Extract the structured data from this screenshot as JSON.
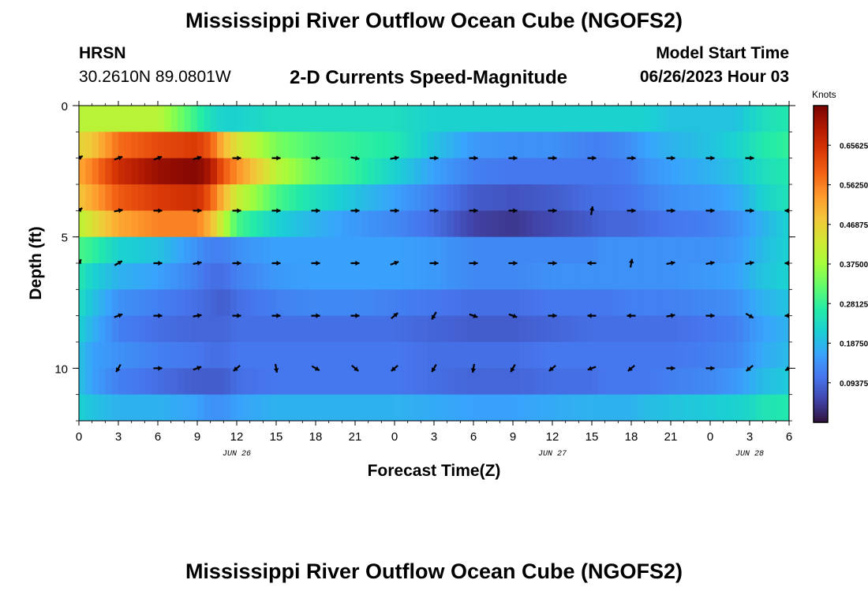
{
  "header": {
    "title": "Mississippi River Outflow Ocean Cube (NGOFS2)",
    "station": "HRSN",
    "coords": "30.2610N  89.0801W",
    "subtitle": "2-D Currents Speed-Magnitude",
    "model_start_label": "Model Start Time",
    "model_start_value": "06/26/2023 Hour 03"
  },
  "footer": {
    "title": "Mississippi River Outflow Ocean Cube (NGOFS2)"
  },
  "chart_data": {
    "type": "heatmap",
    "title": "2-D Currents Speed-Magnitude",
    "xlabel": "Forecast Time(Z)",
    "ylabel": "Depth (ft)",
    "x_tick_labels": [
      "0",
      "3",
      "6",
      "9",
      "12",
      "15",
      "18",
      "21",
      "0",
      "3",
      "6",
      "9",
      "12",
      "15",
      "18",
      "21",
      "0",
      "3",
      "6"
    ],
    "date_labels": [
      {
        "text": "JUN 26",
        "tick_index": 4
      },
      {
        "text": "JUN 27",
        "tick_index": 12
      },
      {
        "text": "JUN 28",
        "tick_index": 17
      }
    ],
    "xlim": [
      0,
      54
    ],
    "y_ticks": [
      0,
      5,
      10
    ],
    "ylim": [
      0,
      12
    ],
    "y_inverted": true,
    "colorbar": {
      "unit_label": "Knots",
      "tick_labels": [
        "0.65625",
        "0.56250",
        "0.46875",
        "0.37500",
        "0.28125",
        "0.18750",
        "0.09375"
      ],
      "range": [
        0,
        0.75
      ],
      "colors": [
        "#30123b",
        "#4145ab",
        "#4675ed",
        "#39a2fc",
        "#1bcfd4",
        "#24eca6",
        "#61fc6c",
        "#a4fc3b",
        "#d1e834",
        "#f3c63a",
        "#fe9b2d",
        "#f36315",
        "#d93806",
        "#b11901",
        "#7a0403"
      ]
    },
    "depth_levels": [
      0.5,
      1.5,
      2.5,
      3.5,
      4.5,
      5.5,
      6.5,
      7.5,
      8.5,
      9.5,
      10.5,
      11.5
    ],
    "anchor_times": [
      0,
      1,
      3,
      6,
      9,
      10,
      11,
      12,
      15,
      18,
      21,
      24,
      27,
      30,
      33,
      36,
      39,
      40,
      42,
      43,
      45,
      48,
      50,
      51,
      52,
      54
    ],
    "speed_profiles": [
      [
        0.4,
        0.4,
        0.4,
        0.4,
        0.28,
        0.24,
        0.22,
        0.22,
        0.24,
        0.24,
        0.24,
        0.24,
        0.22,
        0.22,
        0.22,
        0.22,
        0.22,
        0.22,
        0.22,
        0.22,
        0.2,
        0.2,
        0.2,
        0.22,
        0.24,
        0.26
      ],
      [
        0.46,
        0.48,
        0.58,
        0.62,
        0.64,
        0.6,
        0.5,
        0.44,
        0.34,
        0.3,
        0.28,
        0.26,
        0.2,
        0.15,
        0.14,
        0.14,
        0.12,
        0.12,
        0.14,
        0.16,
        0.18,
        0.2,
        0.22,
        0.24,
        0.26,
        0.28
      ],
      [
        0.52,
        0.56,
        0.66,
        0.72,
        0.74,
        0.7,
        0.6,
        0.55,
        0.4,
        0.32,
        0.28,
        0.22,
        0.16,
        0.12,
        0.11,
        0.11,
        0.11,
        0.11,
        0.12,
        0.14,
        0.16,
        0.18,
        0.2,
        0.22,
        0.24,
        0.26
      ],
      [
        0.48,
        0.52,
        0.6,
        0.64,
        0.66,
        0.6,
        0.5,
        0.42,
        0.3,
        0.24,
        0.2,
        0.16,
        0.12,
        0.08,
        0.07,
        0.08,
        0.1,
        0.1,
        0.11,
        0.12,
        0.14,
        0.15,
        0.17,
        0.19,
        0.22,
        0.25
      ],
      [
        0.4,
        0.44,
        0.52,
        0.56,
        0.56,
        0.5,
        0.4,
        0.3,
        0.22,
        0.18,
        0.15,
        0.13,
        0.1,
        0.05,
        0.04,
        0.06,
        0.08,
        0.09,
        0.09,
        0.1,
        0.11,
        0.12,
        0.14,
        0.16,
        0.18,
        0.22
      ],
      [
        0.3,
        0.28,
        0.22,
        0.2,
        0.14,
        0.12,
        0.12,
        0.14,
        0.16,
        0.16,
        0.16,
        0.16,
        0.15,
        0.13,
        0.13,
        0.13,
        0.13,
        0.14,
        0.14,
        0.14,
        0.14,
        0.14,
        0.15,
        0.17,
        0.19,
        0.22
      ],
      [
        0.26,
        0.22,
        0.18,
        0.16,
        0.12,
        0.1,
        0.1,
        0.12,
        0.15,
        0.16,
        0.16,
        0.16,
        0.15,
        0.13,
        0.13,
        0.14,
        0.14,
        0.14,
        0.14,
        0.14,
        0.14,
        0.15,
        0.16,
        0.18,
        0.2,
        0.22
      ],
      [
        0.24,
        0.2,
        0.14,
        0.12,
        0.1,
        0.09,
        0.08,
        0.1,
        0.12,
        0.13,
        0.13,
        0.12,
        0.11,
        0.1,
        0.1,
        0.11,
        0.11,
        0.11,
        0.12,
        0.12,
        0.12,
        0.13,
        0.14,
        0.16,
        0.18,
        0.2
      ],
      [
        0.22,
        0.18,
        0.12,
        0.1,
        0.09,
        0.09,
        0.09,
        0.1,
        0.1,
        0.1,
        0.1,
        0.1,
        0.09,
        0.08,
        0.08,
        0.09,
        0.1,
        0.1,
        0.1,
        0.1,
        0.1,
        0.11,
        0.12,
        0.14,
        0.16,
        0.18
      ],
      [
        0.2,
        0.16,
        0.14,
        0.12,
        0.11,
        0.1,
        0.1,
        0.11,
        0.11,
        0.11,
        0.11,
        0.11,
        0.1,
        0.1,
        0.1,
        0.11,
        0.11,
        0.11,
        0.11,
        0.11,
        0.11,
        0.12,
        0.13,
        0.15,
        0.17,
        0.19
      ],
      [
        0.2,
        0.16,
        0.12,
        0.1,
        0.08,
        0.08,
        0.08,
        0.1,
        0.11,
        0.11,
        0.11,
        0.11,
        0.1,
        0.09,
        0.09,
        0.1,
        0.1,
        0.11,
        0.11,
        0.11,
        0.12,
        0.13,
        0.15,
        0.17,
        0.19,
        0.21
      ],
      [
        0.22,
        0.2,
        0.18,
        0.18,
        0.16,
        0.14,
        0.14,
        0.16,
        0.18,
        0.18,
        0.18,
        0.18,
        0.17,
        0.16,
        0.16,
        0.17,
        0.18,
        0.18,
        0.18,
        0.19,
        0.2,
        0.21,
        0.22,
        0.23,
        0.25,
        0.26
      ]
    ],
    "vectors": [
      {
        "depth": 2,
        "times": [
          0,
          3,
          6,
          9,
          12,
          15,
          18,
          21,
          24,
          27,
          30,
          33,
          36,
          39,
          42,
          45,
          48,
          51
        ],
        "angles_deg": [
          -30,
          -20,
          -20,
          -15,
          0,
          0,
          0,
          10,
          -10,
          0,
          0,
          0,
          0,
          0,
          0,
          0,
          0,
          0
        ]
      },
      {
        "depth": 4,
        "times": [
          0,
          3,
          6,
          9,
          12,
          15,
          18,
          21,
          24,
          27,
          30,
          33,
          36,
          39,
          42,
          45,
          48,
          51,
          54
        ],
        "angles_deg": [
          -40,
          -10,
          0,
          0,
          0,
          0,
          0,
          0,
          0,
          0,
          0,
          0,
          0,
          -80,
          0,
          0,
          0,
          0,
          180
        ]
      },
      {
        "depth": 6,
        "times": [
          0,
          3,
          6,
          9,
          12,
          15,
          18,
          21,
          24,
          27,
          30,
          33,
          36,
          39,
          42,
          45,
          48,
          51,
          54
        ],
        "angles_deg": [
          -60,
          -30,
          0,
          -10,
          0,
          0,
          0,
          0,
          -20,
          0,
          0,
          0,
          0,
          180,
          -80,
          -10,
          -10,
          -10,
          180
        ]
      },
      {
        "depth": 8,
        "times": [
          3,
          6,
          9,
          12,
          15,
          18,
          21,
          24,
          27,
          30,
          33,
          36,
          39,
          42,
          45,
          48,
          51,
          54
        ],
        "angles_deg": [
          -20,
          0,
          -10,
          0,
          0,
          0,
          0,
          -40,
          120,
          20,
          20,
          0,
          180,
          180,
          -10,
          0,
          30,
          180
        ]
      },
      {
        "depth": 10,
        "times": [
          3,
          6,
          9,
          12,
          15,
          18,
          21,
          24,
          27,
          30,
          33,
          36,
          39,
          42,
          45,
          48,
          51,
          54
        ],
        "angles_deg": [
          120,
          0,
          -20,
          140,
          80,
          30,
          40,
          140,
          120,
          100,
          120,
          140,
          160,
          140,
          0,
          0,
          140,
          150
        ]
      }
    ]
  }
}
